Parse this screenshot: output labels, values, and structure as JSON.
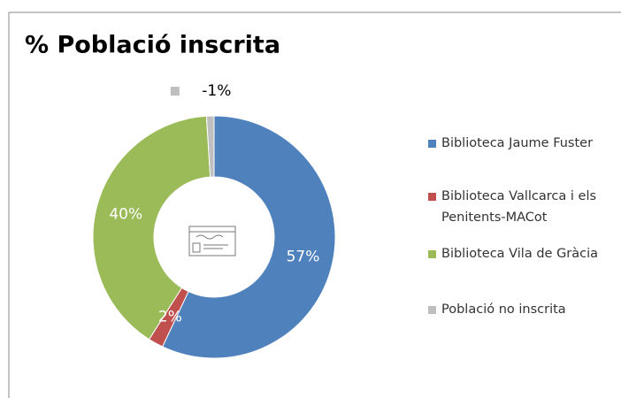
{
  "chart_data": {
    "type": "pie",
    "title": "% Població inscrita",
    "categories": [
      "Biblioteca Jaume Fuster",
      "Biblioteca Vallcarca i els Penitents-MACot",
      "Biblioteca Vila de Gràcia",
      "Població no inscrita"
    ],
    "values": [
      57,
      2,
      40,
      -1
    ],
    "value_labels": [
      "57%",
      "2%",
      "40%",
      "-1%"
    ],
    "colors": [
      "#4f81bd",
      "#c0504d",
      "#9bbb59",
      "#bfbfbf"
    ],
    "legend": "right"
  }
}
